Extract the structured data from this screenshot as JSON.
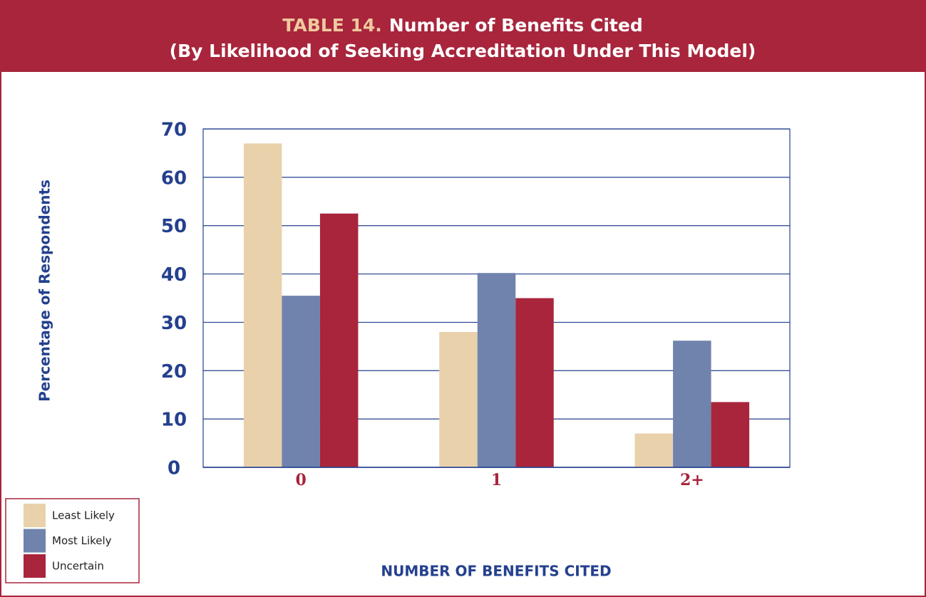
{
  "chart_data": {
    "type": "bar",
    "title_label": "TABLE 14.",
    "title": "Number of Benefits Cited",
    "subtitle": "(By Likelihood of Seeking Accreditation Under This Model)",
    "y_label": "Percentage of Respondents",
    "x_label": "NUMBER OF BENEFITS CITED",
    "categories": [
      "0",
      "1",
      "2+"
    ],
    "series": [
      {
        "name": "Least Likely",
        "color": "#e8d1ab",
        "values": [
          67,
          28,
          7
        ]
      },
      {
        "name": "Most Likely",
        "color": "#6f83ad",
        "values": [
          35.5,
          40.2,
          26.2
        ]
      },
      {
        "name": "Uncertain",
        "color": "#a8253c",
        "values": [
          52.5,
          35,
          13.5
        ]
      }
    ],
    "ylim": [
      0,
      70
    ],
    "yticks": [
      0,
      10,
      20,
      30,
      40,
      50,
      60,
      70
    ],
    "grid": true,
    "legend": "bottom-left"
  }
}
